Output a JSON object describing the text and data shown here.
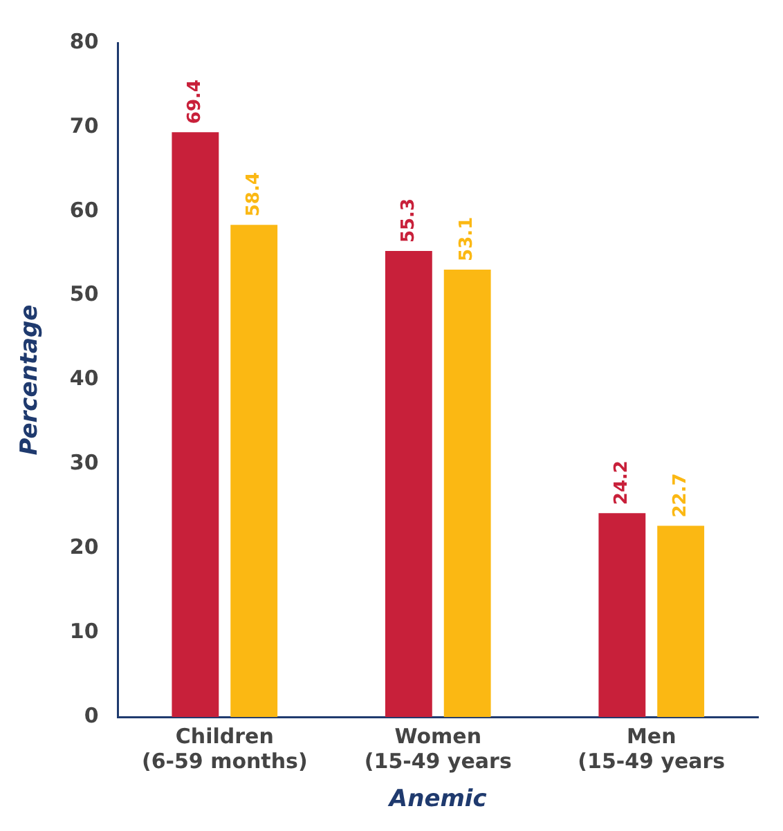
{
  "chart_data": {
    "type": "bar",
    "xlabel": "Anemic",
    "ylabel": "Percentage",
    "categories": [
      "Children\n(6-59 months)",
      "Women\n(15-49 years",
      "Men\n(15-49 years"
    ],
    "series": [
      {
        "color": "#c8203a",
        "values": [
          69.4,
          55.3,
          24.2
        ]
      },
      {
        "color": "#fbb813",
        "values": [
          58.4,
          53.1,
          22.7
        ]
      }
    ],
    "ylim": [
      0,
      80
    ],
    "yticks": [
      0,
      10,
      20,
      30,
      40,
      50,
      60,
      70,
      80
    ],
    "grid": false,
    "legend": false,
    "data_labels": true
  }
}
